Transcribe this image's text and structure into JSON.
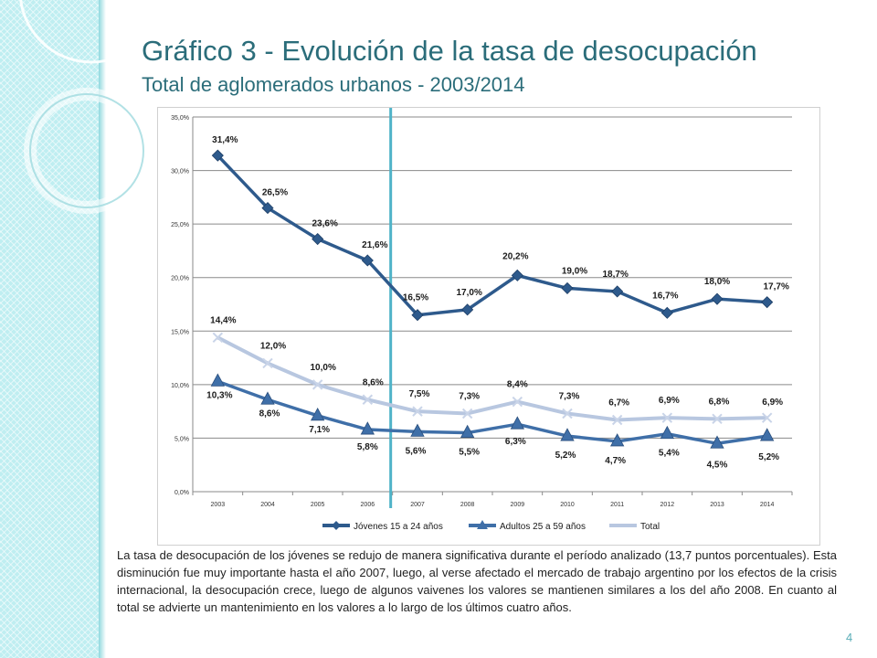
{
  "slide": {
    "title": "Gráfico 3 - Evolución de la tasa de desocupación",
    "subtitle": "Total de aglomerados urbanos - 2003/2014",
    "paragraph": "La tasa de desocupación de los jóvenes se redujo de manera significativa durante el período analizado (13,7 puntos porcentuales).  Esta disminución fue muy importante hasta el año 2007, luego, al verse afectado el mercado de trabajo argentino por los efectos de la crisis internacional, la desocupación crece, luego de algunos vaivenes los valores se mantienen similares a los del año 2008.  En cuanto al total se advierte un mantenimiento en los valores a lo largo de los últimos cuatro años.",
    "page_number": "4"
  },
  "chart_data": {
    "type": "line",
    "categories": [
      "2003",
      "2004",
      "2005",
      "2006",
      "2007",
      "2008",
      "2009",
      "2010",
      "2011",
      "2012",
      "2013",
      "2014"
    ],
    "y_ticks": [
      "0,0%",
      "5,0%",
      "10,0%",
      "15,0%",
      "20,0%",
      "25,0%",
      "30,0%",
      "35,0%"
    ],
    "ylim": [
      0,
      35
    ],
    "grid": true,
    "legend_position": "bottom",
    "reference_line_after": "2006",
    "series": [
      {
        "name": "Jóvenes 15 a 24 años",
        "color": "#2e5a8c",
        "marker": "diamond",
        "values": [
          31.4,
          26.5,
          23.6,
          21.6,
          16.5,
          17.0,
          20.2,
          19.0,
          18.7,
          16.7,
          18.0,
          17.7
        ],
        "labels": [
          "31,4%",
          "26,5%",
          "23,6%",
          "21,6%",
          "16,5%",
          "17,0%",
          "20,2%",
          "19,0%",
          "18,7%",
          "16,7%",
          "18,0%",
          "17,7%"
        ]
      },
      {
        "name": "Adultos 25 a 59 años",
        "color": "#3f6fa8",
        "marker": "triangle",
        "values": [
          10.3,
          8.6,
          7.1,
          5.8,
          5.6,
          5.5,
          6.3,
          5.2,
          4.7,
          5.4,
          4.5,
          5.2
        ],
        "labels": [
          "10,3%",
          "8,6%",
          "7,1%",
          "5,8%",
          "5,6%",
          "5,5%",
          "6,3%",
          "5,2%",
          "4,7%",
          "5,4%",
          "4,5%",
          "5,2%"
        ]
      },
      {
        "name": "Total",
        "color": "#b8c7e0",
        "marker": "x",
        "values": [
          14.4,
          12.0,
          10.0,
          8.6,
          7.5,
          7.3,
          8.4,
          7.3,
          6.7,
          6.9,
          6.8,
          6.9
        ],
        "labels": [
          "14,4%",
          "12,0%",
          "10,0%",
          "8,6%",
          "7,5%",
          "7,3%",
          "8,4%",
          "7,3%",
          "6,7%",
          "6,9%",
          "6,8%",
          "6,9%"
        ]
      }
    ],
    "accent_line_color": "#4fb3c8"
  }
}
